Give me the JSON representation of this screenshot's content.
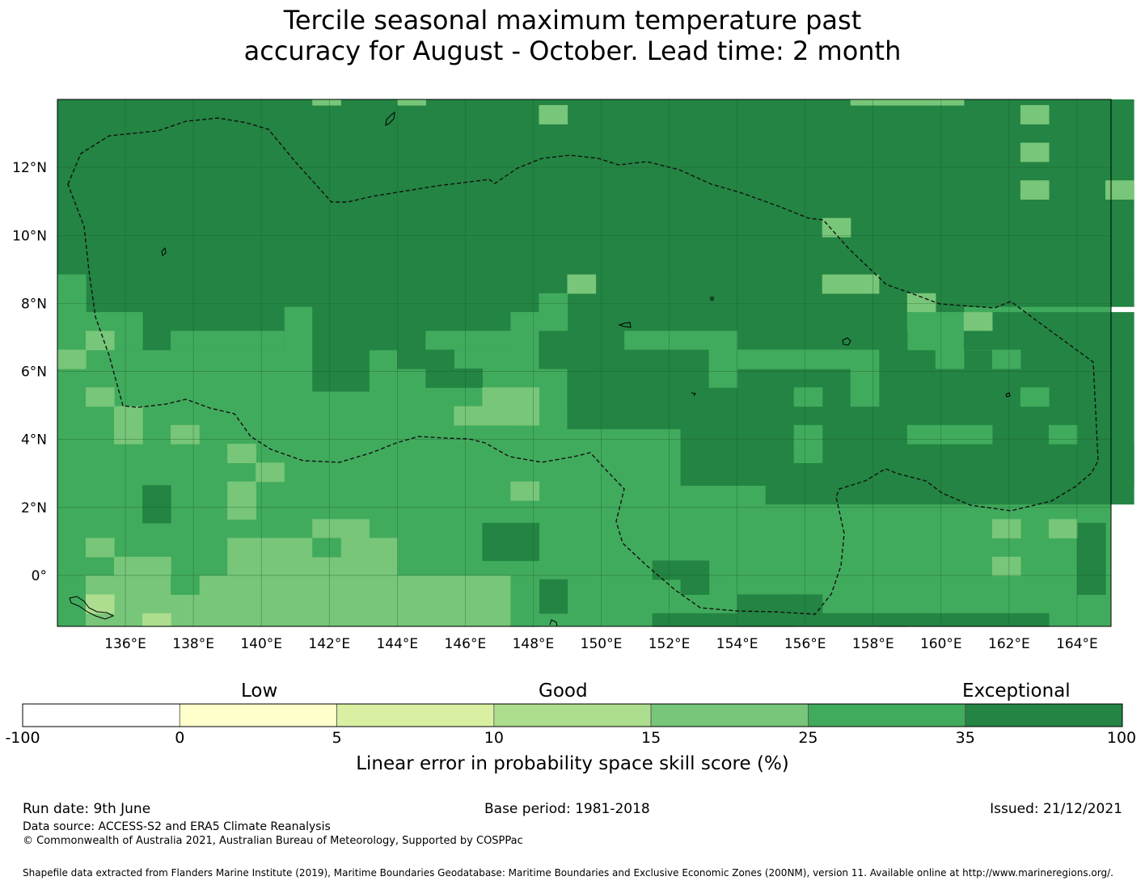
{
  "title_line1": "Tercile seasonal maximum temperature past",
  "title_line2": "accuracy for August - October. Lead time: 2 month",
  "map": {
    "lon_ticks": [
      "136°E",
      "138°E",
      "140°E",
      "142°E",
      "144°E",
      "146°E",
      "148°E",
      "150°E",
      "152°E",
      "154°E",
      "156°E",
      "158°E",
      "160°E",
      "162°E",
      "164°E"
    ],
    "lat_ticks": [
      "12°N",
      "10°N",
      "8°N",
      "6°N",
      "4°N",
      "2°N",
      "0°"
    ],
    "lon_range": [
      134,
      165
    ],
    "lat_range": [
      -1.5,
      14
    ]
  },
  "colorbar": {
    "category_low": "Low",
    "category_good": "Good",
    "category_exceptional": "Exceptional",
    "bins": [
      {
        "from": -100,
        "to": 0,
        "color": "#ffffff"
      },
      {
        "from": 0,
        "to": 5,
        "color": "#ffffcc"
      },
      {
        "from": 5,
        "to": 10,
        "color": "#d9f0a3"
      },
      {
        "from": 10,
        "to": 15,
        "color": "#addd8e"
      },
      {
        "from": 15,
        "to": 25,
        "color": "#78c679"
      },
      {
        "from": 25,
        "to": 35,
        "color": "#41ab5d"
      },
      {
        "from": 35,
        "to": 100,
        "color": "#238443"
      }
    ],
    "tick_labels": [
      "-100",
      "0",
      "5",
      "10",
      "15",
      "25",
      "35",
      "100"
    ],
    "label": "Linear error in probability space skill score (%)"
  },
  "footer": {
    "run_date": "Run date: 9th June",
    "base_period": "Base period: 1981-2018",
    "issued": "Issued: 21/12/2021",
    "data_source": "Data source: ACCESS-S2 and ERA5 Climate Reanalysis",
    "copyright": "© Commonwealth of Australia 2021, Australian Bureau of Meteorology, Supported by COSPPac",
    "shapefile": "Shapefile data extracted from Flanders Marine Institute (2019), Maritime Boundaries Geodatabase: Maritime Boundaries and Exclusive Economic Zones (200NM), version 11. Available online at http://www.marineregions.org/."
  }
}
